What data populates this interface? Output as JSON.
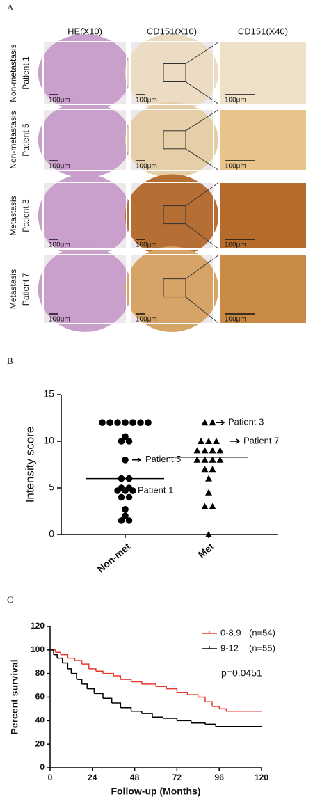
{
  "panel_labels": [
    "A",
    "B",
    "C"
  ],
  "figure_a": {
    "column_headers": [
      "HE(X10)",
      "CD151(X10)",
      "CD151(X40)"
    ],
    "rows": [
      {
        "group": "Non-metastasis",
        "patient": "Patient 1",
        "scale_labels": [
          "100μm",
          "100μm",
          "100μm"
        ]
      },
      {
        "group": "Non-metastasis",
        "patient": "Patient 5",
        "scale_labels": [
          "100μm",
          "100μm",
          "100μm"
        ]
      },
      {
        "group": "Metastasis",
        "patient": "Patient 3",
        "scale_labels": [
          "100μm",
          "100μm",
          "100μm"
        ]
      },
      {
        "group": "Metastasis",
        "patient": "Patient 7",
        "scale_labels": [
          "100μm",
          "100μm",
          "100μm"
        ]
      }
    ]
  },
  "chart_data": [
    {
      "type": "scatter",
      "ylabel": "Intensity score",
      "categories": [
        "Non-met",
        "Met"
      ],
      "ylim": [
        0,
        15
      ],
      "yticks": [
        0,
        5,
        10,
        15
      ],
      "series": [
        {
          "marker": "circle",
          "color": "#000000",
          "values": [
            12,
            12,
            12,
            12,
            12,
            12,
            12,
            10.5,
            10,
            10,
            8,
            6,
            6,
            5,
            5,
            4.7,
            4.7,
            4.7,
            4,
            4,
            2.7,
            2,
            1.5,
            1.5
          ]
        },
        {
          "marker": "triangle",
          "color": "#000000",
          "values": [
            12,
            12,
            10,
            10,
            10,
            9,
            9,
            9,
            9,
            8,
            8,
            8,
            8,
            7,
            7,
            6,
            4.5,
            3,
            3,
            0
          ]
        }
      ],
      "medians": [
        6,
        8.3
      ],
      "annotations": [
        {
          "text": "Patient 5",
          "series": 0,
          "value": 8
        },
        {
          "text": "Patient 1",
          "series": 0,
          "value": 4.7
        },
        {
          "text": "Patient 3",
          "series": 1,
          "value": 12
        },
        {
          "text": "Patient 7",
          "series": 1,
          "value": 10
        }
      ]
    },
    {
      "type": "line",
      "xlabel": "Follow-up (Months)",
      "ylabel": "Percent survival",
      "annotation": "p=0.0451",
      "xlim": [
        0,
        120
      ],
      "xticks": [
        0,
        24,
        48,
        72,
        96,
        120
      ],
      "ylim": [
        0,
        120
      ],
      "yticks": [
        0,
        20,
        40,
        60,
        80,
        100,
        120
      ],
      "series": [
        {
          "name": "0-8.9",
          "count_label": "(n=54)",
          "color": "#e8392f",
          "x": [
            0,
            3,
            6,
            10,
            14,
            18,
            22,
            26,
            30,
            36,
            40,
            46,
            52,
            60,
            66,
            72,
            78,
            84,
            88,
            92,
            96,
            100,
            120
          ],
          "values": [
            100,
            98,
            96,
            93,
            91,
            88,
            84,
            82,
            80,
            78,
            75,
            73,
            71,
            69,
            67,
            64,
            62,
            60,
            56,
            52,
            50,
            48,
            48
          ]
        },
        {
          "name": "9-12",
          "count_label": "(n=55)",
          "color": "#000000",
          "x": [
            0,
            2,
            4,
            7,
            10,
            12,
            15,
            18,
            21,
            25,
            30,
            35,
            40,
            46,
            52,
            58,
            64,
            72,
            80,
            88,
            94,
            120
          ],
          "values": [
            100,
            96,
            93,
            89,
            84,
            80,
            75,
            71,
            67,
            63,
            59,
            55,
            51,
            48,
            46,
            43,
            42,
            40,
            38,
            37,
            35,
            35
          ]
        }
      ]
    }
  ]
}
